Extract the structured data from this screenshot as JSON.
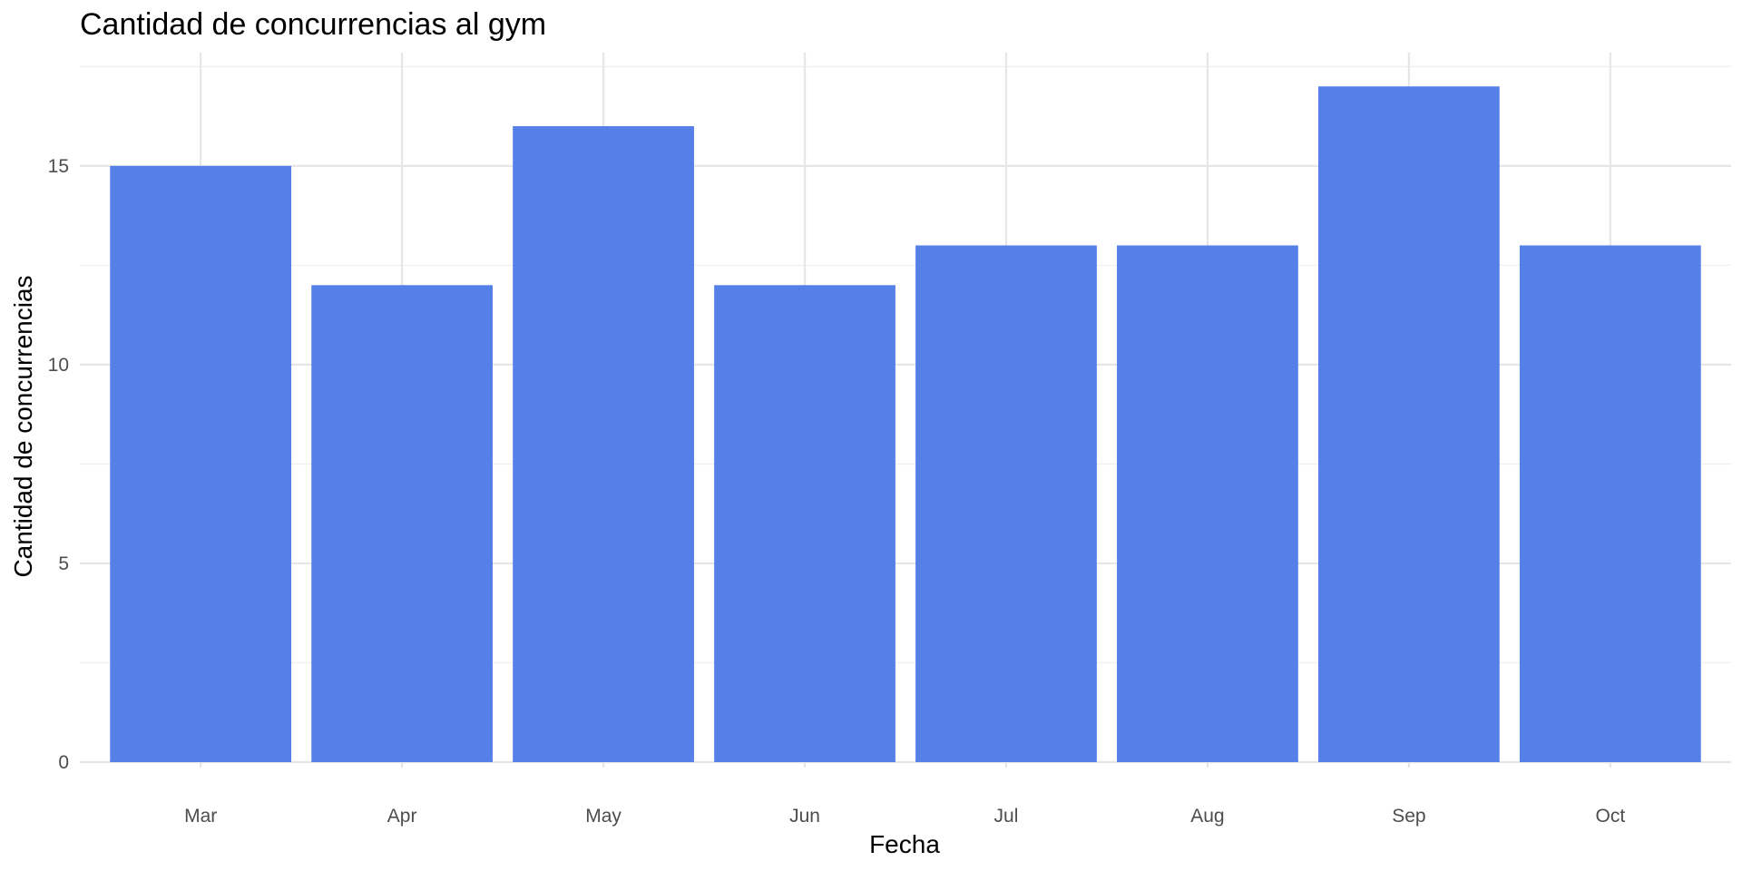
{
  "chart_data": {
    "type": "bar",
    "title": "Cantidad de concurrencias al gym",
    "xlabel": "Fecha",
    "ylabel": "Cantidad de concurrencias",
    "categories": [
      "Mar",
      "Apr",
      "May",
      "Jun",
      "Jul",
      "Aug",
      "Sep",
      "Oct"
    ],
    "values": [
      15,
      12,
      16,
      12,
      13,
      13,
      17,
      13
    ],
    "yticks": [
      0,
      5,
      10,
      15
    ],
    "ylim": [
      0,
      17.85
    ],
    "grid": true,
    "bar_color": "#5480E8",
    "grid_color": "#E6E6E6",
    "text_color": "#4D4D4D",
    "legend": "none"
  }
}
